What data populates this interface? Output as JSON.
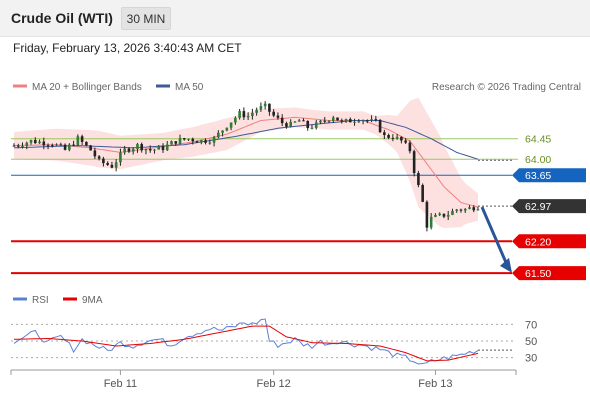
{
  "header": {
    "instrument": "Crude Oil (WTI)",
    "timeframe": "30 MIN",
    "datetime": "Friday, February 13, 2026 3:40:43 AM CET"
  },
  "legend": {
    "ma20": "MA 20 + Bollinger Bands",
    "ma50": "MA 50",
    "credit": "Research © 2026 Trading Central",
    "rsi": "RSI",
    "rsi_ma": "9MA"
  },
  "colors": {
    "ma20": "#f08080",
    "ma50": "#3d5a99",
    "band": "#fde0e0",
    "resistance": "#8bc34a",
    "pivot": "#1565c0",
    "support": "#e60000",
    "last": "#333333",
    "arrow": "#2a5599",
    "rsi": "#5b7fd6",
    "rsi_ma": "#e60000"
  },
  "chart_data": [
    {
      "type": "candlestick",
      "ylim": [
        61.35,
        65.3
      ],
      "x_labels": [
        "Feb 11",
        "Feb 12",
        "Feb 13"
      ],
      "levels": [
        {
          "name": "resistance-2",
          "value": 64.45,
          "label": "64.45",
          "kind": "resistance"
        },
        {
          "name": "resistance-1",
          "value": 64.0,
          "label": "64.00",
          "kind": "resistance"
        },
        {
          "name": "pivot",
          "value": 63.65,
          "label": "63.65",
          "kind": "pivot"
        },
        {
          "name": "last-price",
          "value": 62.97,
          "label": "62.97",
          "kind": "last"
        },
        {
          "name": "support-1",
          "value": 62.2,
          "label": "62.20",
          "kind": "support"
        },
        {
          "name": "support-2",
          "value": 61.5,
          "label": "61.50",
          "kind": "support"
        }
      ],
      "forecast": {
        "from": 62.95,
        "to": 61.55
      },
      "price_anchors": [
        [
          0,
          64.3
        ],
        [
          4,
          64.4
        ],
        [
          9,
          64.35
        ],
        [
          12,
          64.2
        ],
        [
          15,
          64.45
        ],
        [
          18,
          64.2
        ],
        [
          20,
          63.95
        ],
        [
          23,
          63.85
        ],
        [
          26,
          64.2
        ],
        [
          29,
          64.3
        ],
        [
          32,
          64.2
        ],
        [
          35,
          64.25
        ],
        [
          38,
          64.4
        ],
        [
          41,
          64.45
        ],
        [
          44,
          64.4
        ],
        [
          47,
          64.45
        ],
        [
          50,
          64.75
        ],
        [
          53,
          65.0
        ],
        [
          55,
          64.95
        ],
        [
          57,
          65.1
        ],
        [
          59,
          65.15
        ],
        [
          61,
          64.95
        ],
        [
          63,
          64.8
        ],
        [
          65,
          64.75
        ],
        [
          67,
          64.85
        ],
        [
          69,
          64.7
        ],
        [
          71,
          64.75
        ],
        [
          73,
          64.85
        ],
        [
          75,
          64.95
        ],
        [
          77,
          64.8
        ],
        [
          79,
          64.85
        ],
        [
          81,
          64.9
        ],
        [
          83,
          64.85
        ],
        [
          85,
          64.8
        ],
        [
          87,
          64.5
        ],
        [
          89,
          64.5
        ],
        [
          91,
          64.4
        ],
        [
          93,
          64.2
        ],
        [
          94,
          63.75
        ],
        [
          95,
          63.4
        ],
        [
          96,
          63.05
        ],
        [
          97,
          62.55
        ],
        [
          98,
          62.7
        ],
        [
          100,
          62.75
        ],
        [
          102,
          62.8
        ],
        [
          104,
          62.9
        ],
        [
          106,
          62.9
        ],
        [
          108,
          62.95
        ],
        [
          109,
          62.97
        ]
      ],
      "ma20_anchors": [
        [
          0,
          64.3
        ],
        [
          10,
          64.32
        ],
        [
          18,
          64.25
        ],
        [
          25,
          64.15
        ],
        [
          33,
          64.25
        ],
        [
          42,
          64.38
        ],
        [
          50,
          64.55
        ],
        [
          58,
          64.85
        ],
        [
          66,
          64.92
        ],
        [
          74,
          64.85
        ],
        [
          82,
          64.85
        ],
        [
          88,
          64.65
        ],
        [
          93,
          64.4
        ],
        [
          97,
          63.9
        ],
        [
          101,
          63.4
        ],
        [
          105,
          63.05
        ],
        [
          109,
          62.95
        ]
      ],
      "ma50_anchors": [
        [
          0,
          64.25
        ],
        [
          15,
          64.3
        ],
        [
          28,
          64.25
        ],
        [
          40,
          64.32
        ],
        [
          52,
          64.5
        ],
        [
          62,
          64.68
        ],
        [
          72,
          64.78
        ],
        [
          80,
          64.85
        ],
        [
          86,
          64.85
        ],
        [
          92,
          64.7
        ],
        [
          98,
          64.45
        ],
        [
          104,
          64.15
        ],
        [
          109,
          64.0
        ]
      ],
      "band_halfwidth_anchors": [
        [
          0,
          0.3
        ],
        [
          20,
          0.4
        ],
        [
          35,
          0.3
        ],
        [
          50,
          0.35
        ],
        [
          58,
          0.25
        ],
        [
          70,
          0.2
        ],
        [
          85,
          0.2
        ],
        [
          90,
          0.4
        ],
        [
          95,
          1.2
        ],
        [
          100,
          1.0
        ],
        [
          106,
          0.45
        ],
        [
          109,
          0.3
        ]
      ]
    },
    {
      "type": "line",
      "ylim": [
        15,
        85
      ],
      "y_ticks": [
        30,
        50,
        70
      ],
      "rsi_anchors": [
        [
          0,
          50
        ],
        [
          5,
          60
        ],
        [
          8,
          48
        ],
        [
          11,
          55
        ],
        [
          14,
          40
        ],
        [
          16,
          52
        ],
        [
          19,
          45
        ],
        [
          22,
          38
        ],
        [
          25,
          48
        ],
        [
          28,
          44
        ],
        [
          31,
          50
        ],
        [
          34,
          52
        ],
        [
          37,
          45
        ],
        [
          40,
          55
        ],
        [
          43,
          60
        ],
        [
          46,
          65
        ],
        [
          49,
          63
        ],
        [
          52,
          68
        ],
        [
          54,
          72
        ],
        [
          56,
          70
        ],
        [
          58,
          75
        ],
        [
          59,
          77
        ],
        [
          60,
          50
        ],
        [
          62,
          45
        ],
        [
          64,
          48
        ],
        [
          66,
          52
        ],
        [
          68,
          46
        ],
        [
          70,
          44
        ],
        [
          72,
          49
        ],
        [
          74,
          47
        ],
        [
          76,
          50
        ],
        [
          78,
          48
        ],
        [
          80,
          46
        ],
        [
          82,
          45
        ],
        [
          84,
          42
        ],
        [
          86,
          40
        ],
        [
          88,
          36
        ],
        [
          90,
          32
        ],
        [
          92,
          30
        ],
        [
          94,
          26
        ],
        [
          96,
          20
        ],
        [
          98,
          25
        ],
        [
          100,
          28
        ],
        [
          102,
          30
        ],
        [
          104,
          32
        ],
        [
          106,
          35
        ],
        [
          108,
          38
        ],
        [
          109,
          39
        ]
      ],
      "rsi_ma_anchors": [
        [
          0,
          52
        ],
        [
          8,
          53
        ],
        [
          16,
          50
        ],
        [
          24,
          44
        ],
        [
          32,
          47
        ],
        [
          40,
          52
        ],
        [
          48,
          60
        ],
        [
          56,
          68
        ],
        [
          60,
          68
        ],
        [
          64,
          55
        ],
        [
          70,
          48
        ],
        [
          78,
          47
        ],
        [
          86,
          44
        ],
        [
          92,
          36
        ],
        [
          97,
          26
        ],
        [
          102,
          27
        ],
        [
          109,
          35
        ]
      ]
    }
  ]
}
